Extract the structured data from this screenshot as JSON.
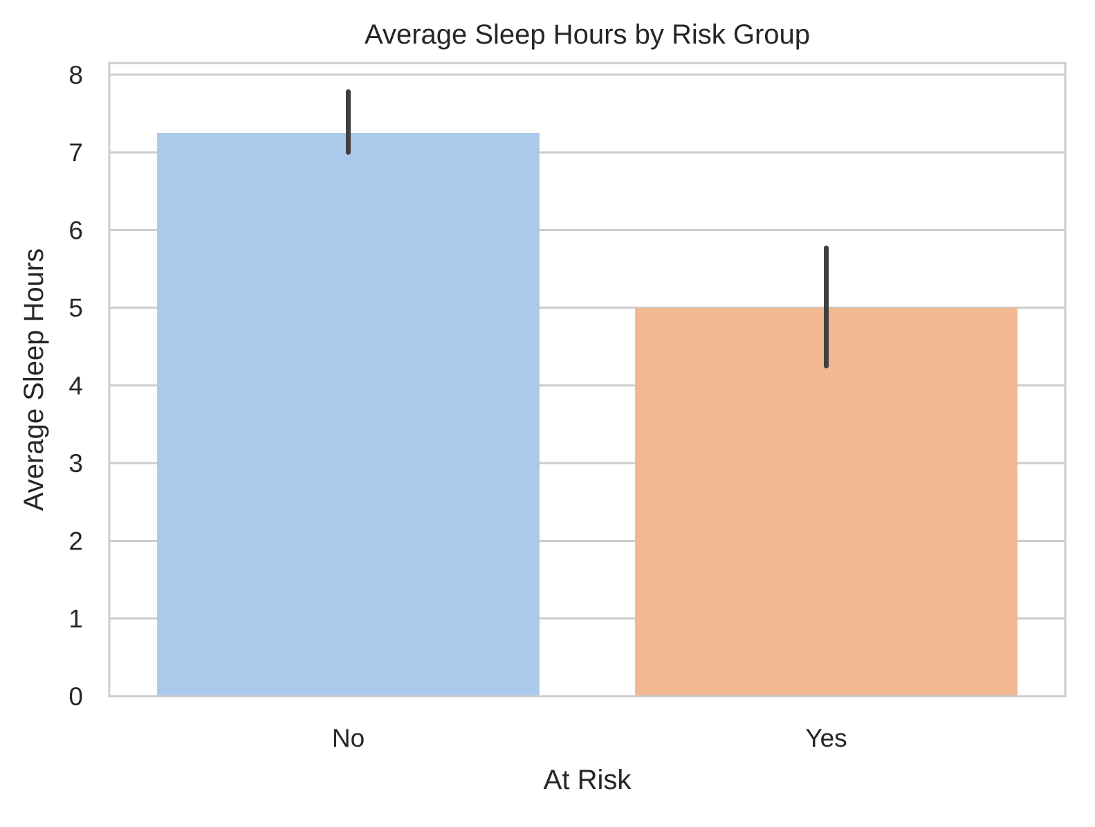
{
  "chart_data": {
    "type": "bar",
    "title": "Average Sleep Hours by Risk Group",
    "xlabel": "At Risk",
    "ylabel": "Average Sleep Hours",
    "categories": [
      "No",
      "Yes"
    ],
    "values": [
      7.25,
      5.0
    ],
    "error_bars": [
      {
        "low": 7.0,
        "high": 7.78
      },
      {
        "low": 4.25,
        "high": 5.77
      }
    ],
    "ylim": [
      0,
      8.15
    ],
    "yticks": [
      0,
      1,
      2,
      3,
      4,
      5,
      6,
      7,
      8
    ],
    "grid": true,
    "colors": {
      "bars": [
        "#abc9ea",
        "#f1b892"
      ],
      "error_bar": "#404040",
      "grid": "#cccccc",
      "spine": "#cccccc"
    }
  }
}
